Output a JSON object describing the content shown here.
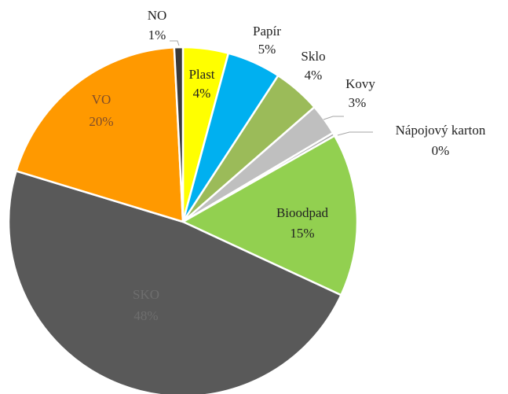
{
  "chart_data": {
    "type": "pie",
    "categories": [
      "Plast",
      "Papír",
      "Sklo",
      "Kovy",
      "Nápojový karton",
      "Bioodpad",
      "SKO",
      "VO",
      "NO"
    ],
    "values": [
      4.2,
      5,
      4.4,
      2.9,
      0.3,
      15.1,
      47.8,
      19.5,
      0.8
    ],
    "value_labels": [
      "4%",
      "5%",
      "4%",
      "3%",
      "0%",
      "15%",
      "48%",
      "20%",
      "1%"
    ],
    "colors": [
      "#ffff00",
      "#00b0f0",
      "#9bbb59",
      "#bfbfbf",
      "#a6a6a6",
      "#92d050",
      "#595959",
      "#ff9900",
      "#3a3a3a"
    ]
  }
}
